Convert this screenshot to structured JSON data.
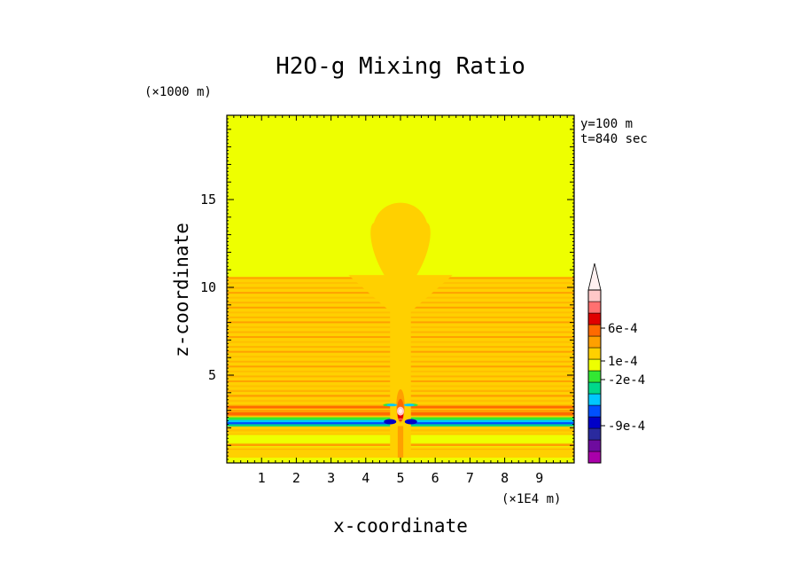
{
  "chart_data": {
    "type": "heatmap",
    "title": "H2O-g Mixing Ratio",
    "xlabel": "x-coordinate",
    "ylabel": "z-coordinate",
    "x_unit": "(×1E4 m)",
    "y_unit": "(×1000 m)",
    "annotations": [
      "y=100 m",
      "t=840 sec"
    ],
    "xlim": [
      0,
      10
    ],
    "ylim": [
      0,
      19.8
    ],
    "x_ticks": [
      1,
      2,
      3,
      4,
      5,
      6,
      7,
      8,
      9
    ],
    "y_ticks": [
      5,
      10,
      15
    ],
    "background_value_color": "#eeff00",
    "plume": {
      "center_x": 5.0,
      "cap_top_z": 15.2,
      "cap_bottom_z": 10.5,
      "cap_half_width_x": 0.9,
      "stem_half_width_x": 0.3,
      "layered_region_z": [
        0.3,
        10.6
      ],
      "band_spacing_z": 0.28,
      "strong_band_z": [
        2.2,
        2.45
      ],
      "core_z": [
        2.3,
        4.2
      ]
    },
    "colorbar": {
      "labels": [
        "6e-4",
        "1e-4",
        "-2e-4",
        "-9e-4"
      ],
      "colors": [
        "#aa00aa",
        "#6e0b9e",
        "#2a2a9e",
        "#0000c8",
        "#0050ff",
        "#00c8ff",
        "#00d88a",
        "#33e833",
        "#eeff00",
        "#ffd000",
        "#ffa000",
        "#ff6a00",
        "#e00000",
        "#ff7070",
        "#ffc8c8",
        "#fff0f0"
      ]
    }
  }
}
